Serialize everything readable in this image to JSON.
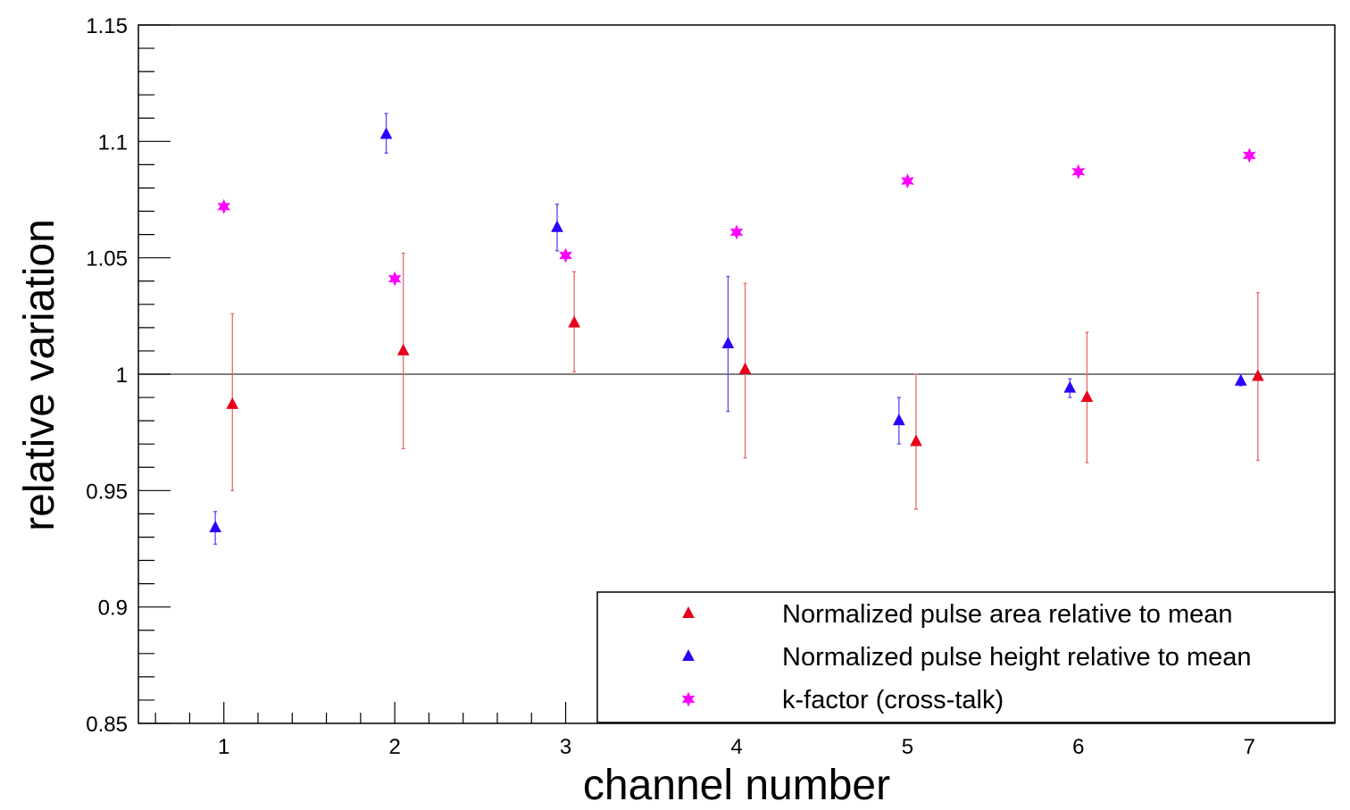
{
  "chart_data": {
    "type": "scatter",
    "title": "",
    "xlabel": "channel number",
    "ylabel": "relative variation",
    "xlim": [
      0.5,
      7.5
    ],
    "ylim": [
      0.85,
      1.15
    ],
    "xticks": [
      1,
      2,
      3,
      4,
      5,
      6,
      7
    ],
    "xtick_labels": [
      "1",
      "2",
      "3",
      "4",
      "5",
      "6",
      "7"
    ],
    "yticks": [
      0.85,
      0.9,
      0.95,
      1.0,
      1.05,
      1.1,
      1.15
    ],
    "ytick_labels": [
      "0.85",
      "0.9",
      "0.95",
      "1",
      "1.05",
      "1.1",
      "1.15"
    ],
    "reference_line_y": 1.0,
    "legend_position": "bottom-right",
    "series": [
      {
        "name": "Normalized pulse area relative to mean",
        "marker": "triangle",
        "color": "#e8001a",
        "error_color": "#e86a6a",
        "x_offset": 0.05,
        "points": [
          {
            "x": 1,
            "y": 0.987,
            "ylow": 0.95,
            "yhigh": 1.026
          },
          {
            "x": 2,
            "y": 1.01,
            "ylow": 0.968,
            "yhigh": 1.052
          },
          {
            "x": 3,
            "y": 1.022,
            "ylow": 1.001,
            "yhigh": 1.044
          },
          {
            "x": 4,
            "y": 1.002,
            "ylow": 0.964,
            "yhigh": 1.039
          },
          {
            "x": 5,
            "y": 0.971,
            "ylow": 0.942,
            "yhigh": 1.0
          },
          {
            "x": 6,
            "y": 0.99,
            "ylow": 0.962,
            "yhigh": 1.018
          },
          {
            "x": 7,
            "y": 0.999,
            "ylow": 0.963,
            "yhigh": 1.035
          }
        ]
      },
      {
        "name": "Normalized pulse height relative to mean",
        "marker": "triangle",
        "color": "#2a00ff",
        "error_color": "#5a45f0",
        "x_offset": -0.05,
        "points": [
          {
            "x": 1,
            "y": 0.934,
            "ylow": 0.927,
            "yhigh": 0.941
          },
          {
            "x": 2,
            "y": 1.103,
            "ylow": 1.095,
            "yhigh": 1.112
          },
          {
            "x": 3,
            "y": 1.063,
            "ylow": 1.053,
            "yhigh": 1.073
          },
          {
            "x": 4,
            "y": 1.013,
            "ylow": 0.984,
            "yhigh": 1.042
          },
          {
            "x": 5,
            "y": 0.98,
            "ylow": 0.97,
            "yhigh": 0.99
          },
          {
            "x": 6,
            "y": 0.994,
            "ylow": 0.99,
            "yhigh": 0.998
          },
          {
            "x": 7,
            "y": 0.997,
            "ylow": 0.995,
            "yhigh": 1.0
          }
        ]
      },
      {
        "name": "k-factor (cross-talk)",
        "marker": "star",
        "color": "#ff00ff",
        "error_color": "#ff00ff",
        "x_offset": 0,
        "points": [
          {
            "x": 1,
            "y": 1.072
          },
          {
            "x": 2,
            "y": 1.041
          },
          {
            "x": 3,
            "y": 1.051
          },
          {
            "x": 4,
            "y": 1.061
          },
          {
            "x": 5,
            "y": 1.083
          },
          {
            "x": 6,
            "y": 1.087
          },
          {
            "x": 7,
            "y": 1.094
          }
        ]
      }
    ]
  }
}
